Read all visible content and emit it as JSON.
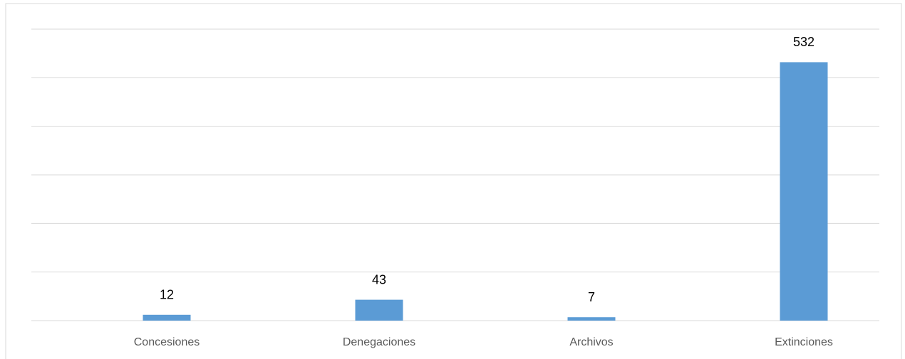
{
  "chart_data": {
    "type": "bar",
    "categories": [
      "Concesiones",
      "Denegaciones",
      "Archivos",
      "Extinciones"
    ],
    "values": [
      12,
      43,
      7,
      532
    ],
    "color": "#5b9bd5",
    "ylim": [
      0,
      600
    ],
    "yticks": [
      0,
      100,
      200,
      300,
      400,
      500,
      600
    ],
    "grid": true
  }
}
